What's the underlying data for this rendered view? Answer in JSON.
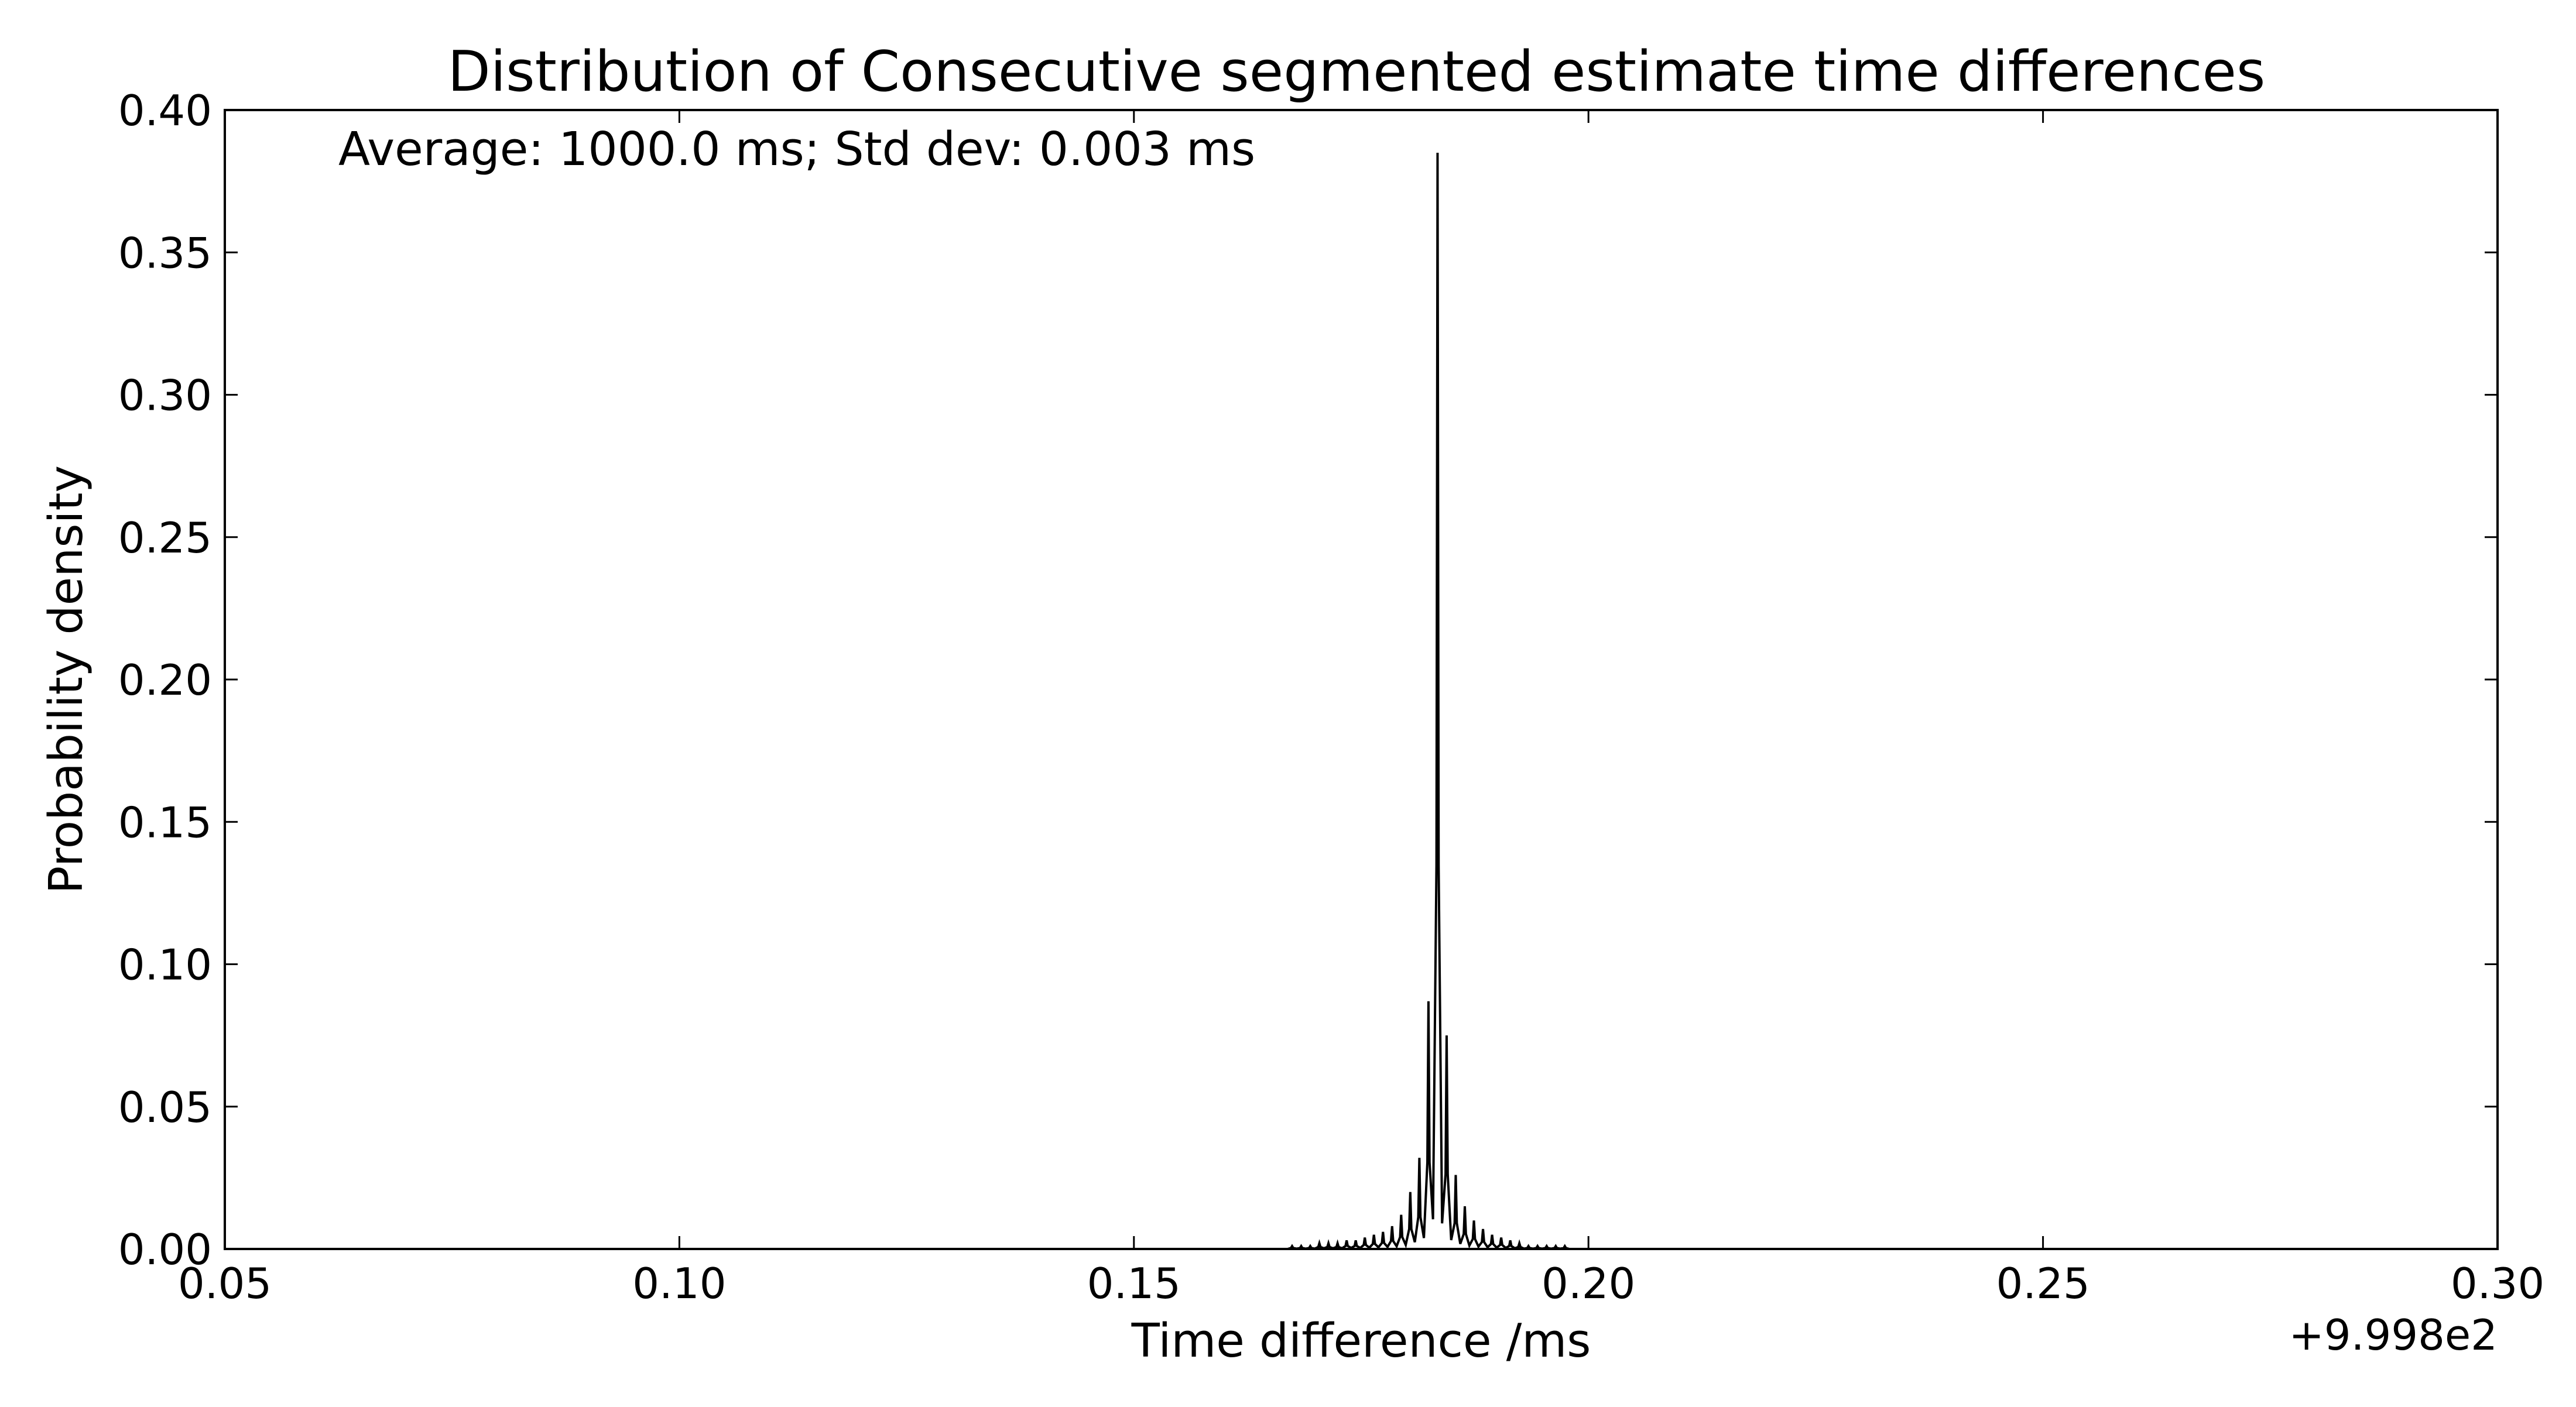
{
  "chart_data": {
    "type": "line",
    "title": "Distribution of Consecutive segmented estimate time differences",
    "xlabel": "Time difference /ms",
    "ylabel": "Probability density",
    "x_offset_label": "+9.998e2",
    "annotation": "Average: 1000.0 ms;  Std dev: 0.003 ms",
    "xlim": [
      0.05,
      0.3
    ],
    "ylim": [
      0.0,
      0.4
    ],
    "x_ticks": [
      "0.05",
      "0.10",
      "0.15",
      "0.20",
      "0.25",
      "0.30"
    ],
    "y_ticks": [
      "0.00",
      "0.05",
      "0.10",
      "0.15",
      "0.20",
      "0.25",
      "0.30",
      "0.35",
      "0.40"
    ],
    "grid": false,
    "line_color": "#000000",
    "peaks": [
      {
        "x": 0.1674,
        "y": 0.001
      },
      {
        "x": 0.1684,
        "y": 0.001
      },
      {
        "x": 0.1694,
        "y": 0.001
      },
      {
        "x": 0.1704,
        "y": 0.002
      },
      {
        "x": 0.1714,
        "y": 0.002
      },
      {
        "x": 0.1724,
        "y": 0.002
      },
      {
        "x": 0.1734,
        "y": 0.003
      },
      {
        "x": 0.1744,
        "y": 0.003
      },
      {
        "x": 0.1754,
        "y": 0.004
      },
      {
        "x": 0.1764,
        "y": 0.005
      },
      {
        "x": 0.1774,
        "y": 0.006
      },
      {
        "x": 0.1784,
        "y": 0.008
      },
      {
        "x": 0.1794,
        "y": 0.012
      },
      {
        "x": 0.1804,
        "y": 0.02
      },
      {
        "x": 0.1814,
        "y": 0.032
      },
      {
        "x": 0.1824,
        "y": 0.087
      },
      {
        "x": 0.1834,
        "y": 0.385
      },
      {
        "x": 0.1844,
        "y": 0.075
      },
      {
        "x": 0.1854,
        "y": 0.026
      },
      {
        "x": 0.1864,
        "y": 0.015
      },
      {
        "x": 0.1874,
        "y": 0.01
      },
      {
        "x": 0.1884,
        "y": 0.007
      },
      {
        "x": 0.1894,
        "y": 0.005
      },
      {
        "x": 0.1904,
        "y": 0.004
      },
      {
        "x": 0.1914,
        "y": 0.003
      },
      {
        "x": 0.1924,
        "y": 0.002
      },
      {
        "x": 0.1934,
        "y": 0.001
      },
      {
        "x": 0.1944,
        "y": 0.001
      },
      {
        "x": 0.1954,
        "y": 0.001
      },
      {
        "x": 0.1964,
        "y": 0.001
      },
      {
        "x": 0.1974,
        "y": 0.001
      }
    ],
    "x_range_nonzero": [
      0.166,
      0.199
    ]
  }
}
